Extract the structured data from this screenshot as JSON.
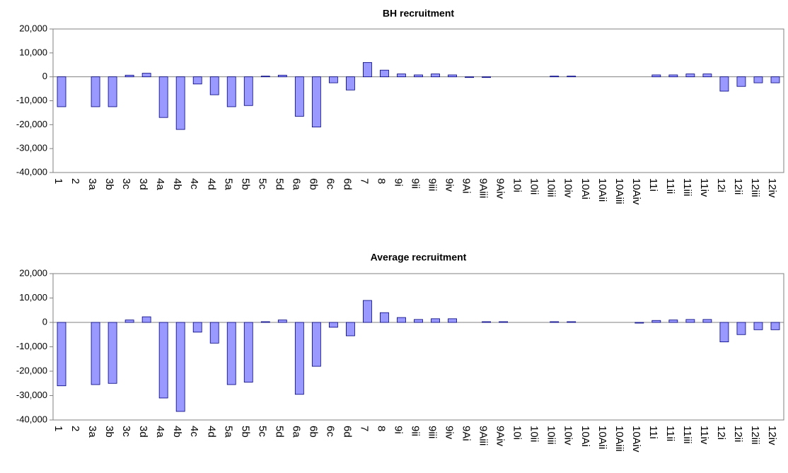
{
  "chart_data": [
    {
      "type": "bar",
      "title": "BH recruitment",
      "categories": [
        "1",
        "2",
        "3a",
        "3b",
        "3c",
        "3d",
        "4a",
        "4b",
        "4c",
        "4d",
        "5a",
        "5b",
        "5c",
        "5d",
        "6a",
        "6b",
        "6c",
        "6d",
        "7",
        "8",
        "9i",
        "9ii",
        "9iii",
        "9iv",
        "9Ai",
        "9Aiii",
        "9Aiv",
        "10i",
        "10ii",
        "10iii",
        "10iv",
        "10Ai",
        "10Aii",
        "10Aiii",
        "10Aiv",
        "11i",
        "11ii",
        "11iii",
        "11iv",
        "12i",
        "12ii",
        "12iii",
        "12iv"
      ],
      "values": [
        -12500,
        0,
        -12500,
        -12500,
        700,
        1500,
        -17000,
        -22000,
        -3000,
        -7500,
        -12500,
        -12000,
        300,
        700,
        -16500,
        -21000,
        -2500,
        -5500,
        6000,
        2800,
        1200,
        800,
        1200,
        800,
        -300,
        -300,
        0,
        0,
        0,
        300,
        300,
        0,
        0,
        0,
        0,
        800,
        800,
        1200,
        1200,
        -6000,
        -4000,
        -2500,
        -2500
      ],
      "color": "#9999ff",
      "ylim": [
        -40000,
        20000
      ],
      "yticks": [
        {
          "value": -40000,
          "label": "-40,000"
        },
        {
          "value": -30000,
          "label": "-30,000"
        },
        {
          "value": -20000,
          "label": "-20,000"
        },
        {
          "value": -10000,
          "label": "-10,000"
        },
        0,
        {
          "value": 10000,
          "label": "10,000"
        },
        {
          "value": 20000,
          "label": "20,000"
        }
      ]
    },
    {
      "type": "bar",
      "title": "Average recruitment",
      "categories": [
        "1",
        "2",
        "3a",
        "3b",
        "3c",
        "3d",
        "4a",
        "4b",
        "4c",
        "4d",
        "5a",
        "5b",
        "5c",
        "5d",
        "6a",
        "6b",
        "6c",
        "6d",
        "7",
        "8",
        "9i",
        "9ii",
        "9iii",
        "9iv",
        "9Ai",
        "9Aiii",
        "9Aiv",
        "10i",
        "10ii",
        "10iii",
        "10iv",
        "10Ai",
        "10Aii",
        "10Aiii",
        "10Aiv",
        "11i",
        "11ii",
        "11iii",
        "11iv",
        "12i",
        "12ii",
        "12iii",
        "12iv"
      ],
      "values": [
        -26000,
        0,
        -25500,
        -25000,
        1000,
        2300,
        -31000,
        -36500,
        -4000,
        -8500,
        -25500,
        -24500,
        300,
        1000,
        -29500,
        -18000,
        -2000,
        -5500,
        9000,
        4000,
        2000,
        1200,
        1500,
        1500,
        0,
        300,
        300,
        0,
        0,
        300,
        300,
        0,
        0,
        0,
        -300,
        800,
        1000,
        1200,
        1200,
        -8000,
        -5000,
        -3000,
        -3000
      ],
      "color": "#9999ff",
      "ylim": [
        -40000,
        20000
      ],
      "yticks": [
        {
          "value": -40000,
          "label": "-40,000"
        },
        {
          "value": -30000,
          "label": "-30,000"
        },
        {
          "value": -20000,
          "label": "-20,000"
        },
        {
          "value": -10000,
          "label": "-10,000"
        },
        0,
        {
          "value": 10000,
          "label": "10,000"
        },
        {
          "value": 20000,
          "label": "20,000"
        }
      ]
    }
  ]
}
